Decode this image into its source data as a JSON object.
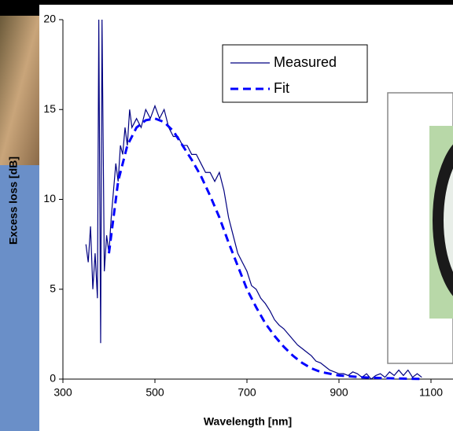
{
  "chart_data": {
    "type": "line",
    "xlabel": "Wavelength [nm]",
    "ylabel": "Excess loss [dB]",
    "xlim": [
      300,
      1100
    ],
    "xticks": [
      300,
      500,
      700,
      900,
      1100
    ],
    "ylim": [
      0,
      20
    ],
    "yticks": [
      0,
      5,
      10,
      15,
      20
    ],
    "legend": "top-center",
    "series": [
      {
        "name": "Measured",
        "color": "#000080",
        "dash": false,
        "x": [
          350,
          355,
          360,
          365,
          370,
          375,
          378,
          382,
          385,
          390,
          395,
          400,
          405,
          410,
          415,
          420,
          425,
          430,
          435,
          440,
          445,
          450,
          460,
          470,
          480,
          490,
          500,
          510,
          520,
          530,
          540,
          550,
          560,
          570,
          580,
          590,
          600,
          610,
          620,
          630,
          640,
          650,
          660,
          670,
          680,
          690,
          700,
          710,
          720,
          730,
          740,
          750,
          760,
          770,
          780,
          790,
          800,
          810,
          820,
          830,
          840,
          850,
          860,
          870,
          880,
          890,
          900,
          910,
          920,
          930,
          940,
          950,
          960,
          970,
          980,
          990,
          1000,
          1010,
          1020,
          1030,
          1040,
          1050,
          1060,
          1070,
          1080
        ],
        "values": [
          7.5,
          6.5,
          8.5,
          5,
          7,
          4.5,
          20,
          2,
          20,
          6,
          8,
          7,
          9,
          10.5,
          12,
          11,
          13,
          12.5,
          14,
          13,
          15,
          14,
          14.5,
          14,
          15,
          14.5,
          15.2,
          14.5,
          15,
          14,
          13.5,
          13.5,
          13,
          13,
          12.5,
          12.5,
          12,
          11.5,
          11.5,
          11,
          11.5,
          10.5,
          9,
          8,
          7,
          6.5,
          6,
          5.2,
          5,
          4.5,
          4.2,
          3.8,
          3.3,
          3,
          2.8,
          2.5,
          2.2,
          1.9,
          1.7,
          1.5,
          1.3,
          1,
          0.9,
          0.7,
          0.5,
          0.4,
          0.3,
          0.3,
          0.2,
          0.4,
          0.3,
          0.1,
          0.3,
          0,
          0.2,
          0.3,
          0.1,
          0.4,
          0.2,
          0.5,
          0.2,
          0.5,
          0.1,
          0.3,
          0.1
        ]
      },
      {
        "name": "Fit",
        "color": "#0000ff",
        "dash": true,
        "x": [
          400,
          420,
          440,
          460,
          480,
          500,
          520,
          540,
          560,
          580,
          600,
          620,
          640,
          660,
          680,
          700,
          720,
          740,
          760,
          780,
          800,
          820,
          840,
          860,
          880,
          900,
          950,
          1000,
          1050,
          1080
        ],
        "values": [
          7,
          11,
          13,
          14,
          14.4,
          14.5,
          14.3,
          13.8,
          13,
          12.2,
          11.3,
          10.2,
          9,
          7.6,
          6.3,
          5,
          4,
          3.1,
          2.4,
          1.8,
          1.3,
          0.9,
          0.6,
          0.4,
          0.3,
          0.2,
          0.1,
          0.05,
          0.02,
          0.01
        ]
      }
    ]
  }
}
